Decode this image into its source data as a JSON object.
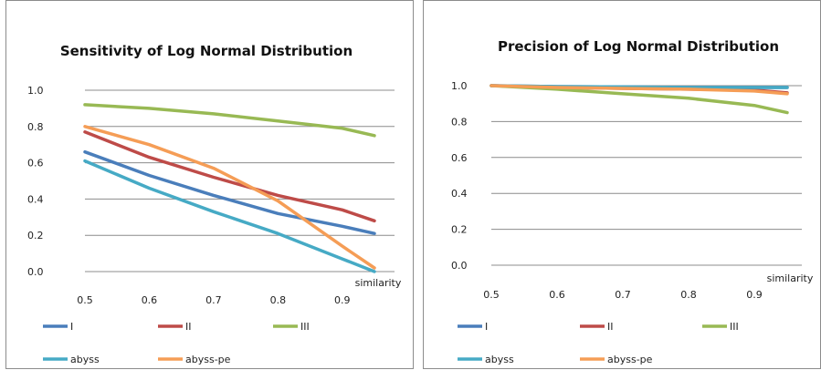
{
  "colors": {
    "I": "#4a7ebb",
    "II": "#be4b48",
    "III": "#98b954",
    "abyss": "#46aac5",
    "abyss-pe": "#f59d56",
    "grid": "#8c8c8c",
    "border": "#8c8c8c"
  },
  "chart_data": [
    {
      "type": "line",
      "title": "Sensitivity of Log Normal Distribution",
      "xlabel": "similarity",
      "ylabel": "",
      "x": [
        0.5,
        0.6,
        0.7,
        0.8,
        0.9,
        0.95
      ],
      "xticks": [
        "0.5",
        "0.6",
        "0.7",
        "0.8",
        "0.9"
      ],
      "yticks": [
        "1.0",
        "0.8",
        "0.6",
        "0.4",
        "0.2",
        "0.0"
      ],
      "xlim": [
        0.5,
        0.95
      ],
      "ylim": [
        0,
        1.0
      ],
      "grid": true,
      "legend": "bottom",
      "series": [
        {
          "name": "I",
          "values": [
            0.66,
            0.53,
            0.42,
            0.32,
            0.25,
            0.21
          ]
        },
        {
          "name": "II",
          "values": [
            0.77,
            0.63,
            0.52,
            0.42,
            0.34,
            0.28
          ]
        },
        {
          "name": "III",
          "values": [
            0.92,
            0.9,
            0.87,
            0.83,
            0.79,
            0.75
          ]
        },
        {
          "name": "abyss",
          "values": [
            0.61,
            0.46,
            0.33,
            0.21,
            0.07,
            0.0
          ]
        },
        {
          "name": "abyss-pe",
          "values": [
            0.8,
            0.7,
            0.57,
            0.39,
            0.14,
            0.02
          ]
        }
      ]
    },
    {
      "type": "line",
      "title": "Precision of Log Normal Distribution",
      "xlabel": "similarity",
      "ylabel": "",
      "x": [
        0.5,
        0.6,
        0.7,
        0.8,
        0.9,
        0.95
      ],
      "xticks": [
        "0.5",
        "0.6",
        "0.7",
        "0.8",
        "0.9"
      ],
      "yticks": [
        "1.0",
        "0.8",
        "0.6",
        "0.4",
        "0.2",
        "0.0"
      ],
      "xlim": [
        0.5,
        0.95
      ],
      "ylim": [
        0,
        1.0
      ],
      "grid": true,
      "legend": "bottom",
      "series": [
        {
          "name": "I",
          "values": [
            1.0,
            0.995,
            0.993,
            0.99,
            0.99,
            0.99
          ]
        },
        {
          "name": "II",
          "values": [
            1.0,
            0.99,
            0.985,
            0.98,
            0.975,
            0.96
          ]
        },
        {
          "name": "III",
          "values": [
            1.0,
            0.98,
            0.955,
            0.93,
            0.89,
            0.85
          ]
        },
        {
          "name": "abyss",
          "values": [
            1.0,
            0.995,
            0.993,
            0.99,
            0.99,
            0.99
          ]
        },
        {
          "name": "abyss-pe",
          "values": [
            1.0,
            0.99,
            0.985,
            0.98,
            0.97,
            0.955
          ]
        }
      ]
    }
  ]
}
